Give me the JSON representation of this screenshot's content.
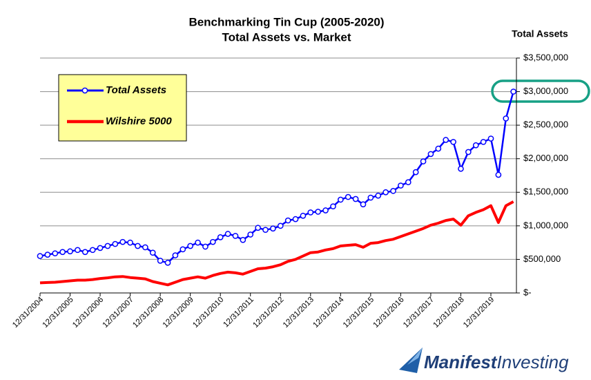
{
  "chart_data": {
    "type": "line",
    "title": "Benchmarking Tin Cup (2005-2020)",
    "subtitle": "Total Assets vs. Market",
    "y_axis_label": "Total Assets",
    "logo": [
      "Manifest",
      "Investing"
    ],
    "categories": [
      "12/31/2004",
      null,
      null,
      null,
      "12/31/2005",
      null,
      null,
      null,
      "12/31/2006",
      null,
      null,
      null,
      "12/31/2007",
      null,
      null,
      null,
      "12/31/2008",
      null,
      null,
      null,
      "12/31/2009",
      null,
      null,
      null,
      "12/31/2010",
      null,
      null,
      null,
      "12/31/2011",
      null,
      null,
      null,
      "12/31/2012",
      null,
      null,
      null,
      "12/31/2013",
      null,
      null,
      null,
      "12/31/2014",
      null,
      null,
      null,
      "12/31/2015",
      null,
      null,
      null,
      "12/31/2016",
      null,
      null,
      null,
      "12/31/2017",
      null,
      null,
      null,
      "12/31/2018",
      null,
      null,
      null,
      "12/31/2019",
      null,
      null,
      null
    ],
    "series": [
      {
        "name": "Total Assets",
        "color": "#0000ff",
        "marker": true,
        "values": [
          550000,
          570000,
          590000,
          610000,
          620000,
          640000,
          610000,
          640000,
          670000,
          700000,
          730000,
          760000,
          750000,
          700000,
          680000,
          600000,
          480000,
          450000,
          560000,
          650000,
          700000,
          750000,
          690000,
          760000,
          830000,
          880000,
          850000,
          790000,
          870000,
          970000,
          940000,
          960000,
          1000000,
          1080000,
          1100000,
          1150000,
          1200000,
          1210000,
          1230000,
          1290000,
          1390000,
          1430000,
          1400000,
          1320000,
          1420000,
          1450000,
          1500000,
          1520000,
          1600000,
          1650000,
          1800000,
          1960000,
          2070000,
          2150000,
          2280000,
          2250000,
          1850000,
          2100000,
          2200000,
          2250000,
          2300000,
          1760000,
          2600000,
          3000000
        ]
      },
      {
        "name": "Wilshire 5000",
        "color": "#ff0000",
        "marker": false,
        "values": [
          150000,
          155000,
          160000,
          170000,
          180000,
          190000,
          190000,
          200000,
          215000,
          225000,
          240000,
          245000,
          230000,
          220000,
          210000,
          170000,
          145000,
          120000,
          160000,
          200000,
          220000,
          240000,
          220000,
          260000,
          290000,
          310000,
          300000,
          280000,
          320000,
          360000,
          370000,
          390000,
          420000,
          470000,
          500000,
          550000,
          600000,
          610000,
          640000,
          660000,
          700000,
          710000,
          720000,
          680000,
          740000,
          750000,
          780000,
          800000,
          840000,
          880000,
          920000,
          960000,
          1010000,
          1040000,
          1080000,
          1100000,
          1010000,
          1150000,
          1200000,
          1240000,
          1300000,
          1050000,
          1300000,
          1360000
        ]
      }
    ],
    "ylim": [
      0,
      3500000
    ],
    "yticks": [
      {
        "value": 0,
        "label": "$-"
      },
      {
        "value": 500000,
        "label": "$500,000"
      },
      {
        "value": 1000000,
        "label": "$1,000,000"
      },
      {
        "value": 1500000,
        "label": "$1,500,000"
      },
      {
        "value": 2000000,
        "label": "$2,000,000"
      },
      {
        "value": 2500000,
        "label": "$2,500,000"
      },
      {
        "value": 3000000,
        "label": "$3,000,000"
      },
      {
        "value": 3500000,
        "label": "$3,500,000"
      }
    ],
    "grid": true,
    "legend": "upper left"
  }
}
